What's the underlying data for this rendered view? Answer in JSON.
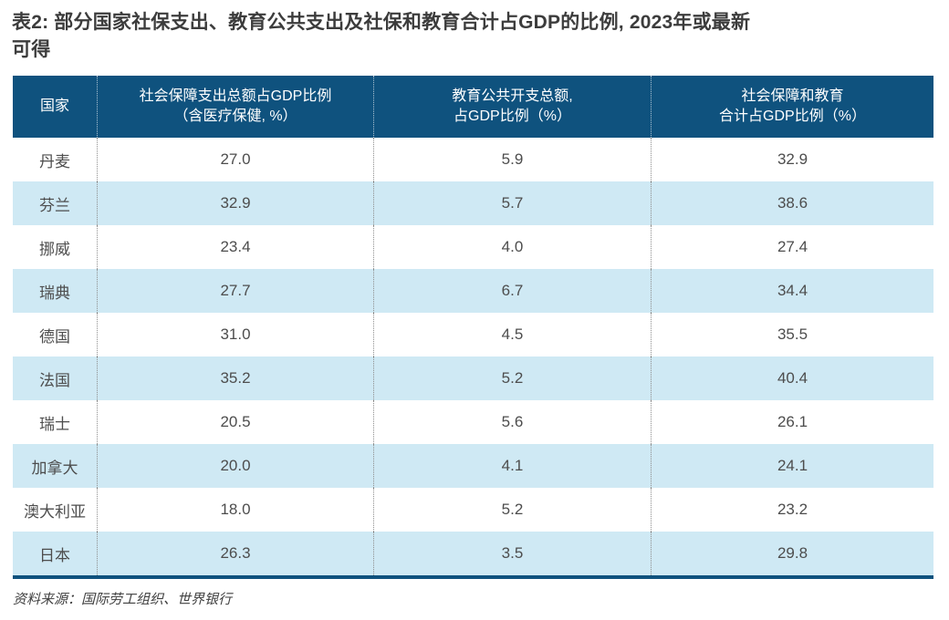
{
  "title": {
    "line1": "表2: 部分国家社保支出、教育公共支出及社保和教育合计占GDP的比例, 2023年或最新",
    "line2": "可得",
    "full": "表2: 部分国家社保支出、教育公共支出及社保和教育合计占GDP的比例, 2023年或最新可得"
  },
  "table": {
    "headers": [
      {
        "line1": "国家",
        "line2": ""
      },
      {
        "line1": "社会保障支出总额占GDP比例",
        "line2": "（含医疗保健, %）"
      },
      {
        "line1": "教育公共开支总额,",
        "line2": "占GDP比例（%）"
      },
      {
        "line1": "社会保障和教育",
        "line2": "合计占GDP比例（%）"
      }
    ],
    "rows": [
      {
        "country": "丹麦",
        "social_security": "27.0",
        "education": "5.9",
        "combined": "32.9"
      },
      {
        "country": "芬兰",
        "social_security": "32.9",
        "education": "5.7",
        "combined": "38.6"
      },
      {
        "country": "挪威",
        "social_security": "23.4",
        "education": "4.0",
        "combined": "27.4"
      },
      {
        "country": "瑞典",
        "social_security": "27.7",
        "education": "6.7",
        "combined": "34.4"
      },
      {
        "country": "德国",
        "social_security": "31.0",
        "education": "4.5",
        "combined": "35.5"
      },
      {
        "country": "法国",
        "social_security": "35.2",
        "education": "5.2",
        "combined": "40.4"
      },
      {
        "country": "瑞士",
        "social_security": "20.5",
        "education": "5.6",
        "combined": "26.1"
      },
      {
        "country": "加拿大",
        "social_security": "20.0",
        "education": "4.1",
        "combined": "24.1"
      },
      {
        "country": "澳大利亚",
        "social_security": "18.0",
        "education": "5.2",
        "combined": "23.2"
      },
      {
        "country": "日本",
        "social_security": "26.3",
        "education": "3.5",
        "combined": "29.8"
      }
    ]
  },
  "source": "资料来源：国际劳工组织、世界银行",
  "colors": {
    "header_bg": "#0f527e",
    "row_alt": "#cfe9f4",
    "title_text": "#3c3c3c",
    "body_text": "#4d4d4d"
  },
  "chart_data": {
    "type": "table",
    "title": "表2: 部分国家社保支出、教育公共支出及社保和教育合计占GDP的比例, 2023年或最新可得",
    "columns": [
      "国家",
      "社会保障支出总额占GDP比例（含医疗保健, %）",
      "教育公共开支总额, 占GDP比例（%）",
      "社会保障和教育合计占GDP比例（%）"
    ],
    "categories": [
      "丹麦",
      "芬兰",
      "挪威",
      "瑞典",
      "德国",
      "法国",
      "瑞士",
      "加拿大",
      "澳大利亚",
      "日本"
    ],
    "series": [
      {
        "name": "社会保障支出总额占GDP比例（含医疗保健, %）",
        "values": [
          27.0,
          32.9,
          23.4,
          27.7,
          31.0,
          35.2,
          20.5,
          20.0,
          18.0,
          26.3
        ]
      },
      {
        "name": "教育公共开支总额, 占GDP比例（%）",
        "values": [
          5.9,
          5.7,
          4.0,
          6.7,
          4.5,
          5.2,
          5.6,
          4.1,
          5.2,
          3.5
        ]
      },
      {
        "name": "社会保障和教育合计占GDP比例（%）",
        "values": [
          32.9,
          38.6,
          27.4,
          34.4,
          35.5,
          40.4,
          26.1,
          24.1,
          23.2,
          29.8
        ]
      }
    ],
    "source": "资料来源：国际劳工组织、世界银行"
  }
}
